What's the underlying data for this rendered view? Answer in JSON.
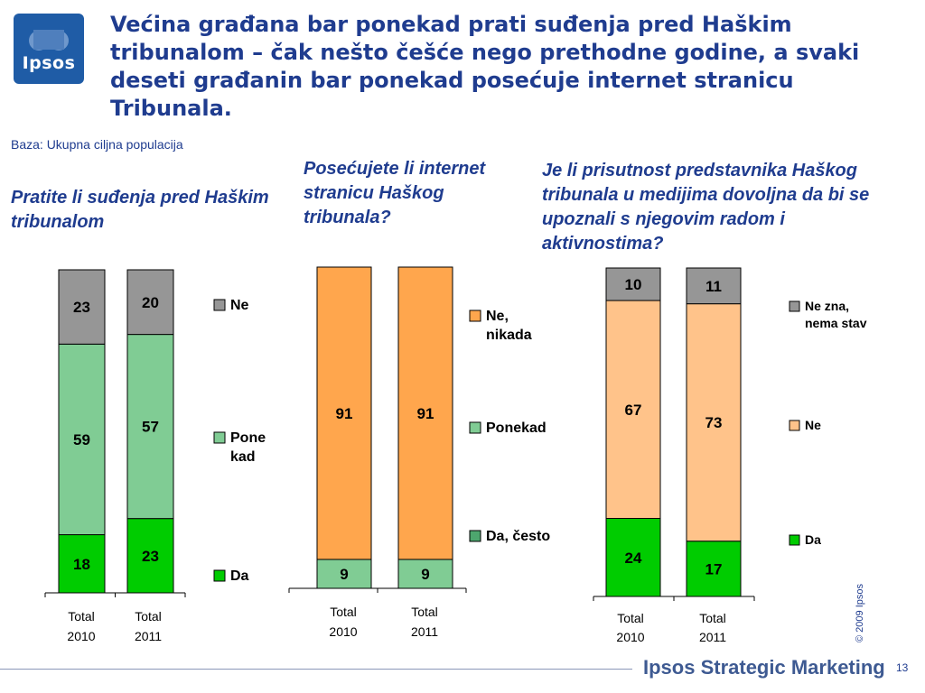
{
  "logo": {
    "text": "Ipsos"
  },
  "title": "Većina građana bar ponekad prati suđenja pred Haškim tribunalom – čak nešto češće nego prethodne godine, a svaki deseti građanin bar ponekad posećuje internet stranicu Tribunala.",
  "base_note": "Baza: Ukupna ciljna populacija",
  "questions": {
    "q1": "Pratite li suđenja pred Haškim tribunalom",
    "q2": "Posećujete li internet stranicu Haškog tribunala?",
    "q3": "Je li prisutnost predstavnika Haškog tribunala u medijima dovoljna da bi se upoznali s njegovim radom i aktivnostima?"
  },
  "colors": {
    "ne": "#969696",
    "pone_kad": "#80cc94",
    "da": "#00cc00",
    "ne_nikada": "#ffa64d",
    "da_cesto": "#4da66e",
    "ne_zna": "#969696",
    "ne_orange": "#ffc38a",
    "da3": "#00cc00"
  },
  "chart_data": [
    {
      "type": "bar",
      "stacked": true,
      "categories": [
        [
          "Total",
          "2010"
        ],
        [
          "Total",
          "2011"
        ]
      ],
      "series": [
        {
          "name": "Da",
          "values": [
            18,
            23
          ],
          "color": "#00cc00"
        },
        {
          "name": "Pone kad",
          "values": [
            59,
            57
          ],
          "color": "#80cc94"
        },
        {
          "name": "Ne",
          "values": [
            23,
            20
          ],
          "color": "#969696"
        }
      ],
      "legend": "right"
    },
    {
      "type": "bar",
      "stacked": true,
      "categories": [
        [
          "Total",
          "2010"
        ],
        [
          "Total",
          "2011"
        ]
      ],
      "series": [
        {
          "name": "Da, često",
          "values": [
            0,
            0
          ],
          "color": "#4da66e"
        },
        {
          "name": "Ponekad",
          "values": [
            9,
            9
          ],
          "color": "#80cc94"
        },
        {
          "name": "Ne, nikada",
          "values": [
            91,
            91
          ],
          "color": "#ffa64d"
        }
      ],
      "legend": "right"
    },
    {
      "type": "bar",
      "stacked": true,
      "categories": [
        [
          "Total",
          "2010"
        ],
        [
          "Total",
          "2011"
        ]
      ],
      "series": [
        {
          "name": "Da",
          "values": [
            24,
            17
          ],
          "color": "#00cc00"
        },
        {
          "name": "Ne",
          "values": [
            67,
            73
          ],
          "color": "#ffc38a"
        },
        {
          "name": "Ne zna, nema stav",
          "values": [
            10,
            11
          ],
          "color": "#969696"
        }
      ],
      "legend": "right"
    }
  ],
  "copyright": "© 2009 Ipsos",
  "footer": {
    "brand": "Ipsos Strategic Marketing",
    "page_number": "13"
  }
}
